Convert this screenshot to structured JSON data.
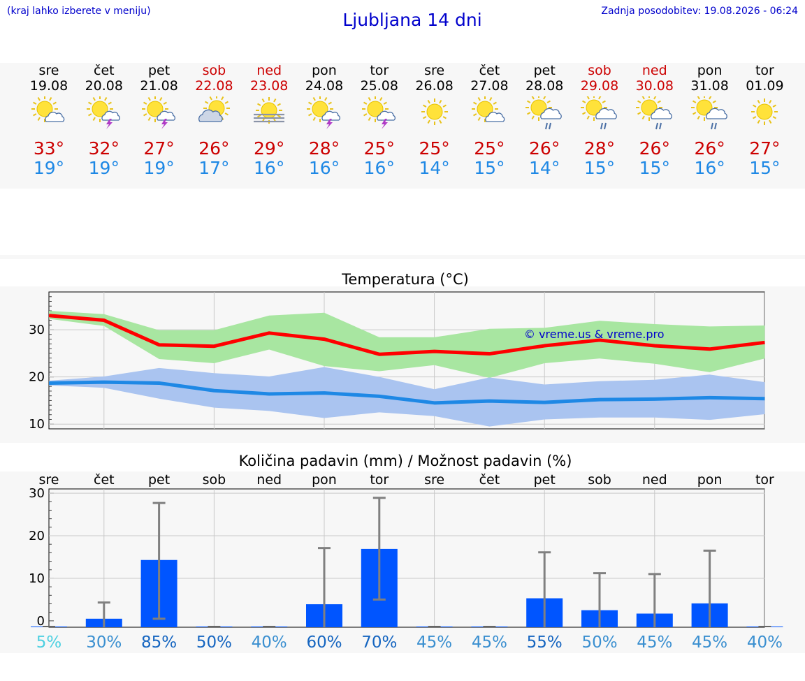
{
  "header": {
    "menu_hint": "(kraj lahko izberete v meniju)",
    "title": "Ljubljana 14 dni",
    "updated": "Zadnja posodobitev: 19.08.2026 - 06:24"
  },
  "days": [
    {
      "name": "sre",
      "date": "19.08",
      "weekend": false,
      "icon": "sun-cloud-icon",
      "max": "33°",
      "min": "19°"
    },
    {
      "name": "čet",
      "date": "20.08",
      "weekend": false,
      "icon": "sun-thunderstorm-icon",
      "max": "32°",
      "min": "19°"
    },
    {
      "name": "pet",
      "date": "21.08",
      "weekend": false,
      "icon": "sun-thunderstorm-icon",
      "max": "27°",
      "min": "19°"
    },
    {
      "name": "sob",
      "date": "22.08",
      "weekend": true,
      "icon": "cloudy-sun-icon",
      "max": "26°",
      "min": "17°"
    },
    {
      "name": "ned",
      "date": "23.08",
      "weekend": true,
      "icon": "sun-fog-icon",
      "max": "29°",
      "min": "16°"
    },
    {
      "name": "pon",
      "date": "24.08",
      "weekend": false,
      "icon": "sun-thunderstorm-icon",
      "max": "28°",
      "min": "16°"
    },
    {
      "name": "tor",
      "date": "25.08",
      "weekend": false,
      "icon": "sun-thunderstorm-icon",
      "max": "25°",
      "min": "16°"
    },
    {
      "name": "sre",
      "date": "26.08",
      "weekend": false,
      "icon": "sun-icon",
      "max": "25°",
      "min": "14°"
    },
    {
      "name": "čet",
      "date": "27.08",
      "weekend": false,
      "icon": "sun-cloud-icon",
      "max": "25°",
      "min": "15°"
    },
    {
      "name": "pet",
      "date": "28.08",
      "weekend": false,
      "icon": "sun-rain-icon",
      "max": "26°",
      "min": "14°"
    },
    {
      "name": "sob",
      "date": "29.08",
      "weekend": true,
      "icon": "sun-rain-icon",
      "max": "28°",
      "min": "15°"
    },
    {
      "name": "ned",
      "date": "30.08",
      "weekend": true,
      "icon": "sun-rain-icon",
      "max": "26°",
      "min": "15°"
    },
    {
      "name": "pon",
      "date": "31.08",
      "weekend": false,
      "icon": "sun-rain-icon",
      "max": "26°",
      "min": "16°"
    },
    {
      "name": "tor",
      "date": "01.09",
      "weekend": false,
      "icon": "sun-icon",
      "max": "27°",
      "min": "15°"
    }
  ],
  "colors": {
    "link_blue": "#0000cc",
    "weekend_red": "#cc0000",
    "max_red": "#ff0000",
    "min_blue": "#1e88e5",
    "max_band": "#a8e6a1",
    "min_band": "#aac4f0",
    "bar_blue": "#0055ff",
    "error_gray": "#808080"
  },
  "chart_data": [
    {
      "type": "line",
      "title": "Temperatura (°C)",
      "watermark": "© vreme.us & vreme.pro",
      "ylim": [
        9,
        38
      ],
      "yticks": [
        10,
        20,
        30
      ],
      "grid": true,
      "x": [
        0,
        1,
        2,
        3,
        4,
        5,
        6,
        7,
        8,
        9,
        10,
        11,
        12,
        13
      ],
      "series": [
        {
          "name": "max",
          "values": [
            33,
            32,
            26.8,
            26.5,
            29.3,
            28,
            24.8,
            25.4,
            24.9,
            26.6,
            27.8,
            26.6,
            25.9,
            27.3
          ],
          "band_low": [
            32.3,
            30.8,
            23.8,
            22.9,
            25.8,
            22.3,
            21.2,
            22.5,
            19.8,
            22.9,
            23.9,
            22.8,
            21.0,
            23.9
          ],
          "band_high": [
            34.0,
            33.3,
            29.9,
            29.9,
            33.0,
            33.6,
            28.4,
            28.4,
            30.2,
            30.4,
            31.9,
            31.2,
            30.7,
            30.9
          ]
        },
        {
          "name": "min",
          "values": [
            18.7,
            18.9,
            18.7,
            17.1,
            16.4,
            16.6,
            15.9,
            14.5,
            14.9,
            14.6,
            15.2,
            15.3,
            15.6,
            15.4
          ],
          "band_low": [
            18.2,
            17.7,
            15.4,
            13.5,
            12.8,
            11.3,
            12.5,
            11.7,
            9.5,
            11.0,
            11.4,
            11.4,
            10.9,
            12.1
          ],
          "band_high": [
            19.2,
            20.1,
            21.9,
            20.8,
            20.1,
            22.1,
            20.0,
            17.4,
            19.9,
            18.4,
            19.1,
            19.4,
            20.5,
            18.9
          ]
        }
      ]
    },
    {
      "type": "bar",
      "title": "Količina padavin (mm) / Možnost padavin (%)",
      "categories": [
        "sre",
        "čet",
        "pet",
        "sob",
        "ned",
        "pon",
        "tor",
        "sre",
        "čet",
        "pet",
        "sob",
        "ned",
        "pon",
        "tor"
      ],
      "ylim": [
        -1.5,
        31
      ],
      "yticks": [
        0,
        10,
        20,
        30
      ],
      "values": [
        0,
        0.5,
        14.3,
        0,
        0,
        3.9,
        16.9,
        0,
        0,
        5.3,
        2.5,
        1.7,
        4.1,
        0
      ],
      "error_high": [
        0,
        4.3,
        27.7,
        0,
        0,
        17.1,
        28.9,
        0,
        0,
        16.1,
        11.2,
        11.0,
        16.5,
        0
      ],
      "error_low": [
        0,
        0,
        0.5,
        0,
        0,
        0,
        5.0,
        0,
        0,
        0,
        0,
        0,
        0,
        0
      ],
      "probability": [
        "5%",
        "30%",
        "85%",
        "50%",
        "40%",
        "60%",
        "70%",
        "45%",
        "45%",
        "55%",
        "50%",
        "45%",
        "45%",
        "40%"
      ],
      "probability_colors": [
        "#4dd0e1",
        "#3a8fd0",
        "#1565c0",
        "#1565c0",
        "#3a8fd0",
        "#1565c0",
        "#1565c0",
        "#3a8fd0",
        "#3a8fd0",
        "#1565c0",
        "#3a8fd0",
        "#3a8fd0",
        "#3a8fd0",
        "#3a8fd0"
      ]
    }
  ]
}
